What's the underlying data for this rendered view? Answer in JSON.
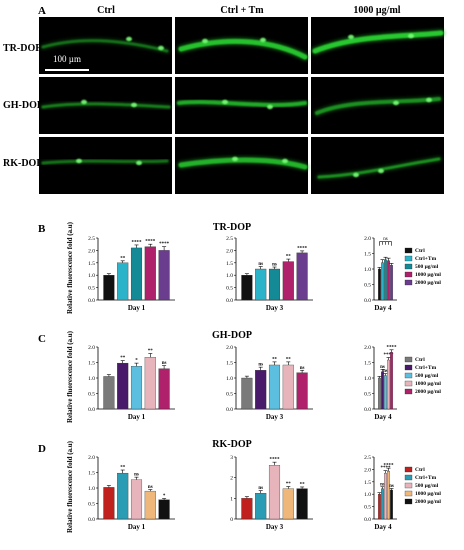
{
  "panel_a": {
    "letter": "A",
    "col_headers": [
      "Ctrl",
      "Ctrl + Tm",
      "1000 µg/ml"
    ],
    "row_labels": [
      "TR-DOP",
      "GH-DOP",
      "RK-DOP"
    ],
    "scale_bar": "100 µm"
  },
  "bar_colors": {
    "tr": [
      "#111111",
      "#2ab3c9",
      "#138a96",
      "#b0216b",
      "#6a3d8f"
    ],
    "gh": [
      "#7a7a7a",
      "#4a1a6a",
      "#5dbfe0",
      "#e8b4bc",
      "#b0216b"
    ],
    "rk": [
      "#c0201e",
      "#2a9db5",
      "#e8b4bc",
      "#f0b77a",
      "#111111"
    ]
  },
  "legends": {
    "tr": [
      "Ctrl",
      "Ctrl+Tm",
      "500 µg/ml",
      "1000 µg/ml",
      "2000 µg/ml"
    ],
    "gh": [
      "Ctrl",
      "Ctrl+Tm",
      "500 µg/ml",
      "1000 µg/ml",
      "2000 µg/ml"
    ],
    "rk": [
      "Ctrl",
      "Ctrl+Tm",
      "500 µg/ml",
      "1000 µg/ml",
      "2000 µg/ml"
    ]
  },
  "chart_data": [
    {
      "type": "bar",
      "panel": "B",
      "title": "TR-DOP",
      "ylabel": "Relative fluorescence fold (a.u)",
      "series": [
        "Ctrl",
        "Ctrl+Tm",
        "500 µg/ml",
        "1000 µg/ml",
        "2000 µg/ml"
      ],
      "subplots": [
        {
          "xlabel": "Day 1",
          "ylim": [
            0,
            2.5
          ],
          "yticks": [
            "0.0",
            "0.5",
            "1.0",
            "1.5",
            "2.0",
            "2.5"
          ],
          "values": [
            1.0,
            1.5,
            2.1,
            2.15,
            2.0
          ],
          "errors": [
            0.06,
            0.08,
            0.12,
            0.1,
            0.15
          ],
          "sig": [
            "",
            "**",
            "****",
            "****",
            "****"
          ]
        },
        {
          "xlabel": "Day 3",
          "ylim": [
            0,
            2.5
          ],
          "yticks": [
            "0.0",
            "0.5",
            "1.0",
            "1.5",
            "2.0",
            "2.5"
          ],
          "values": [
            1.0,
            1.25,
            1.25,
            1.55,
            1.9
          ],
          "errors": [
            0.06,
            0.1,
            0.08,
            0.1,
            0.08
          ],
          "sig": [
            "",
            "ns",
            "ns",
            "**",
            "****"
          ]
        },
        {
          "xlabel": "Day 4",
          "ylim": [
            0,
            2.0
          ],
          "yticks": [
            "0.0",
            "0.5",
            "1.0",
            "1.5",
            "2.0"
          ],
          "values": [
            1.0,
            1.2,
            1.3,
            1.27,
            1.12
          ],
          "errors": [
            0.05,
            0.1,
            0.08,
            0.08,
            0.06
          ],
          "sig": [
            "",
            "",
            "",
            "",
            ""
          ],
          "bracket": "ns"
        }
      ]
    },
    {
      "type": "bar",
      "panel": "C",
      "title": "GH-DOP",
      "ylabel": "Relative fluorescence fold (a.u)",
      "series": [
        "Ctrl",
        "Ctrl+Tm",
        "500 µg/ml",
        "1000 µg/ml",
        "2000 µg/ml"
      ],
      "subplots": [
        {
          "xlabel": "Day 1",
          "ylim": [
            0,
            2.0
          ],
          "yticks": [
            "0.0",
            "0.5",
            "1.0",
            "1.5",
            "2.0"
          ],
          "values": [
            1.05,
            1.48,
            1.38,
            1.67,
            1.3
          ],
          "errors": [
            0.06,
            0.08,
            0.1,
            0.12,
            0.1
          ],
          "sig": [
            "",
            "**",
            "*",
            "**",
            "ns"
          ]
        },
        {
          "xlabel": "Day 3",
          "ylim": [
            0,
            2.0
          ],
          "yticks": [
            "0.0",
            "0.5",
            "1.0",
            "1.5",
            "2.0"
          ],
          "values": [
            1.0,
            1.25,
            1.42,
            1.42,
            1.17
          ],
          "errors": [
            0.06,
            0.1,
            0.1,
            0.1,
            0.08
          ],
          "sig": [
            "",
            "ns",
            "**",
            "**",
            "ns"
          ]
        },
        {
          "xlabel": "Day 4",
          "ylim": [
            0,
            2.0
          ],
          "yticks": [
            "0.0",
            "0.5",
            "1.0",
            "1.5",
            "2.0"
          ],
          "values": [
            1.0,
            1.2,
            1.08,
            1.58,
            1.83
          ],
          "errors": [
            0.05,
            0.08,
            0.06,
            0.08,
            0.08
          ],
          "sig": [
            "",
            "ns",
            "ns",
            "****",
            "****"
          ]
        }
      ]
    },
    {
      "type": "bar",
      "panel": "D",
      "title": "RK-DOP",
      "ylabel": "Relative fluorescence fold (a.u)",
      "series": [
        "Ctrl",
        "Ctrl+Tm",
        "500 µg/ml",
        "1000 µg/ml",
        "2000 µg/ml"
      ],
      "subplots": [
        {
          "xlabel": "Day 1",
          "ylim": [
            0,
            2.0
          ],
          "yticks": [
            "0.0",
            "0.5",
            "1.0",
            "1.5",
            "2.0"
          ],
          "values": [
            1.02,
            1.48,
            1.27,
            0.9,
            0.62
          ],
          "errors": [
            0.06,
            0.1,
            0.08,
            0.05,
            0.04
          ],
          "sig": [
            "",
            "**",
            "ns",
            "ns",
            "*"
          ]
        },
        {
          "xlabel": "Day 3",
          "ylim": [
            0,
            3
          ],
          "yticks": [
            "0",
            "1",
            "2",
            "3"
          ],
          "values": [
            1.0,
            1.25,
            2.6,
            1.47,
            1.47
          ],
          "errors": [
            0.08,
            0.12,
            0.15,
            0.1,
            0.08
          ],
          "sig": [
            "",
            "ns",
            "****",
            "**",
            "**"
          ]
        },
        {
          "xlabel": "Day 4",
          "ylim": [
            0,
            2.5
          ],
          "yticks": [
            "0.0",
            "0.5",
            "1.0",
            "1.5",
            "2.0",
            "2.5"
          ],
          "values": [
            1.0,
            1.22,
            1.85,
            1.93,
            1.17
          ],
          "errors": [
            0.06,
            0.08,
            0.1,
            0.12,
            0.06
          ],
          "sig": [
            "",
            "ns",
            "****",
            "****",
            "ns"
          ]
        }
      ]
    }
  ]
}
